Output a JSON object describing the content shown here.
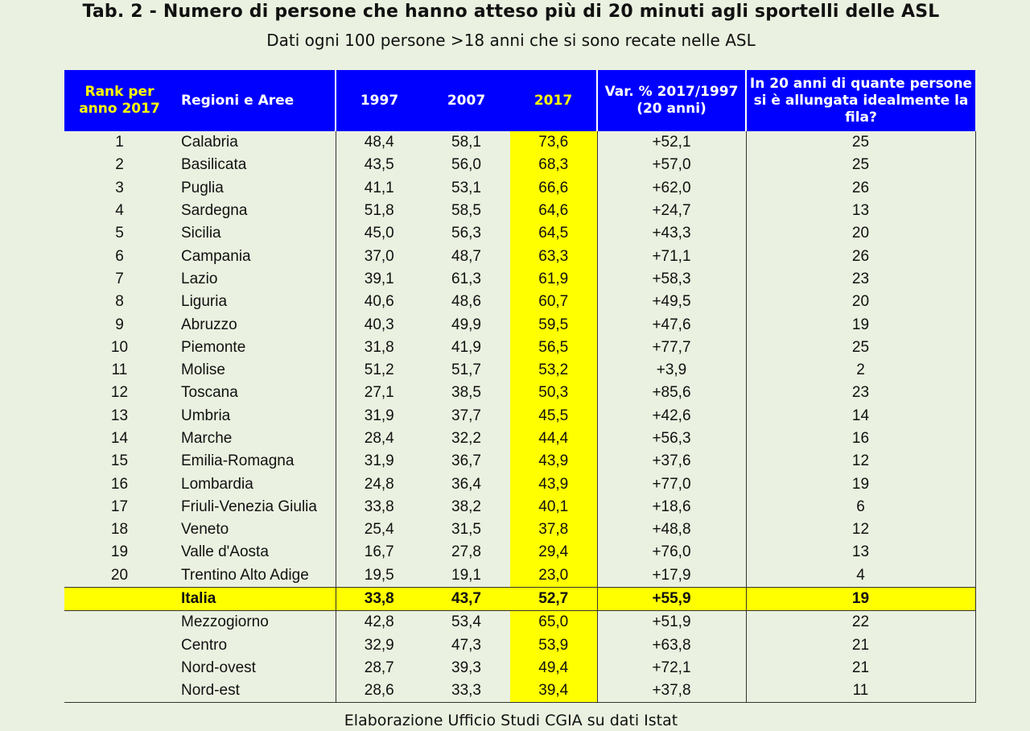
{
  "title": "Tab. 2 - Numero di persone che hanno atteso più di 20 minuti agli sportelli delle ASL",
  "subtitle": "Dati ogni 100 persone >18 anni che si sono recate nelle ASL",
  "headers": {
    "rank": "Rank per anno 2017",
    "region": "Regioni e Aree",
    "y1997": "1997",
    "y2007": "2007",
    "y2017": "2017",
    "var": "Var. % 2017/1997 (20 anni)",
    "fila": "In 20 anni di quante persone si è allungata idealmente la fila?"
  },
  "rows": [
    {
      "rank": "1",
      "region": "Calabria",
      "y1997": "48,4",
      "y2007": "58,1",
      "y2017": "73,6",
      "var": "+52,1",
      "fila": "25"
    },
    {
      "rank": "2",
      "region": "Basilicata",
      "y1997": "43,5",
      "y2007": "56,0",
      "y2017": "68,3",
      "var": "+57,0",
      "fila": "25"
    },
    {
      "rank": "3",
      "region": "Puglia",
      "y1997": "41,1",
      "y2007": "53,1",
      "y2017": "66,6",
      "var": "+62,0",
      "fila": "26"
    },
    {
      "rank": "4",
      "region": "Sardegna",
      "y1997": "51,8",
      "y2007": "58,5",
      "y2017": "64,6",
      "var": "+24,7",
      "fila": "13"
    },
    {
      "rank": "5",
      "region": "Sicilia",
      "y1997": "45,0",
      "y2007": "56,3",
      "y2017": "64,5",
      "var": "+43,3",
      "fila": "20"
    },
    {
      "rank": "6",
      "region": "Campania",
      "y1997": "37,0",
      "y2007": "48,7",
      "y2017": "63,3",
      "var": "+71,1",
      "fila": "26"
    },
    {
      "rank": "7",
      "region": "Lazio",
      "y1997": "39,1",
      "y2007": "61,3",
      "y2017": "61,9",
      "var": "+58,3",
      "fila": "23"
    },
    {
      "rank": "8",
      "region": "Liguria",
      "y1997": "40,6",
      "y2007": "48,6",
      "y2017": "60,7",
      "var": "+49,5",
      "fila": "20"
    },
    {
      "rank": "9",
      "region": "Abruzzo",
      "y1997": "40,3",
      "y2007": "49,9",
      "y2017": "59,5",
      "var": "+47,6",
      "fila": "19"
    },
    {
      "rank": "10",
      "region": "Piemonte",
      "y1997": "31,8",
      "y2007": "41,9",
      "y2017": "56,5",
      "var": "+77,7",
      "fila": "25"
    },
    {
      "rank": "11",
      "region": "Molise",
      "y1997": "51,2",
      "y2007": "51,7",
      "y2017": "53,2",
      "var": "+3,9",
      "fila": "2"
    },
    {
      "rank": "12",
      "region": "Toscana",
      "y1997": "27,1",
      "y2007": "38,5",
      "y2017": "50,3",
      "var": "+85,6",
      "fila": "23"
    },
    {
      "rank": "13",
      "region": "Umbria",
      "y1997": "31,9",
      "y2007": "37,7",
      "y2017": "45,5",
      "var": "+42,6",
      "fila": "14"
    },
    {
      "rank": "14",
      "region": "Marche",
      "y1997": "28,4",
      "y2007": "32,2",
      "y2017": "44,4",
      "var": "+56,3",
      "fila": "16"
    },
    {
      "rank": "15",
      "region": "Emilia-Romagna",
      "y1997": "31,9",
      "y2007": "36,7",
      "y2017": "43,9",
      "var": "+37,6",
      "fila": "12"
    },
    {
      "rank": "16",
      "region": "Lombardia",
      "y1997": "24,8",
      "y2007": "36,4",
      "y2017": "43,9",
      "var": "+77,0",
      "fila": "19"
    },
    {
      "rank": "17",
      "region": "Friuli-Venezia Giulia",
      "y1997": "33,8",
      "y2007": "38,2",
      "y2017": "40,1",
      "var": "+18,6",
      "fila": "6"
    },
    {
      "rank": "18",
      "region": "Veneto",
      "y1997": "25,4",
      "y2007": "31,5",
      "y2017": "37,8",
      "var": "+48,8",
      "fila": "12"
    },
    {
      "rank": "19",
      "region": "Valle d'Aosta",
      "y1997": "16,7",
      "y2007": "27,8",
      "y2017": "29,4",
      "var": "+76,0",
      "fila": "13"
    },
    {
      "rank": "20",
      "region": "Trentino Alto Adige",
      "y1997": "19,5",
      "y2007": "19,1",
      "y2017": "23,0",
      "var": "+17,9",
      "fila": "4"
    }
  ],
  "italia": {
    "rank": "",
    "region": "Italia",
    "y1997": "33,8",
    "y2007": "43,7",
    "y2017": "52,7",
    "var": "+55,9",
    "fila": "19"
  },
  "areas": [
    {
      "rank": "",
      "region": "Mezzogiorno",
      "y1997": "42,8",
      "y2007": "53,4",
      "y2017": "65,0",
      "var": "+51,9",
      "fila": "22"
    },
    {
      "rank": "",
      "region": "Centro",
      "y1997": "32,9",
      "y2007": "47,3",
      "y2017": "53,9",
      "var": "+63,8",
      "fila": "21"
    },
    {
      "rank": "",
      "region": "Nord-ovest",
      "y1997": "28,7",
      "y2007": "39,3",
      "y2017": "49,4",
      "var": "+72,1",
      "fila": "21"
    },
    {
      "rank": "",
      "region": "Nord-est",
      "y1997": "28,6",
      "y2007": "33,3",
      "y2017": "39,4",
      "var": "+37,8",
      "fila": "11"
    }
  ],
  "source": "Elaborazione Ufficio Studi CGIA su dati Istat",
  "colors": {
    "header_bg": "#0000ff",
    "highlight": "#ffff00",
    "page_bg": "#eaf1e0"
  }
}
